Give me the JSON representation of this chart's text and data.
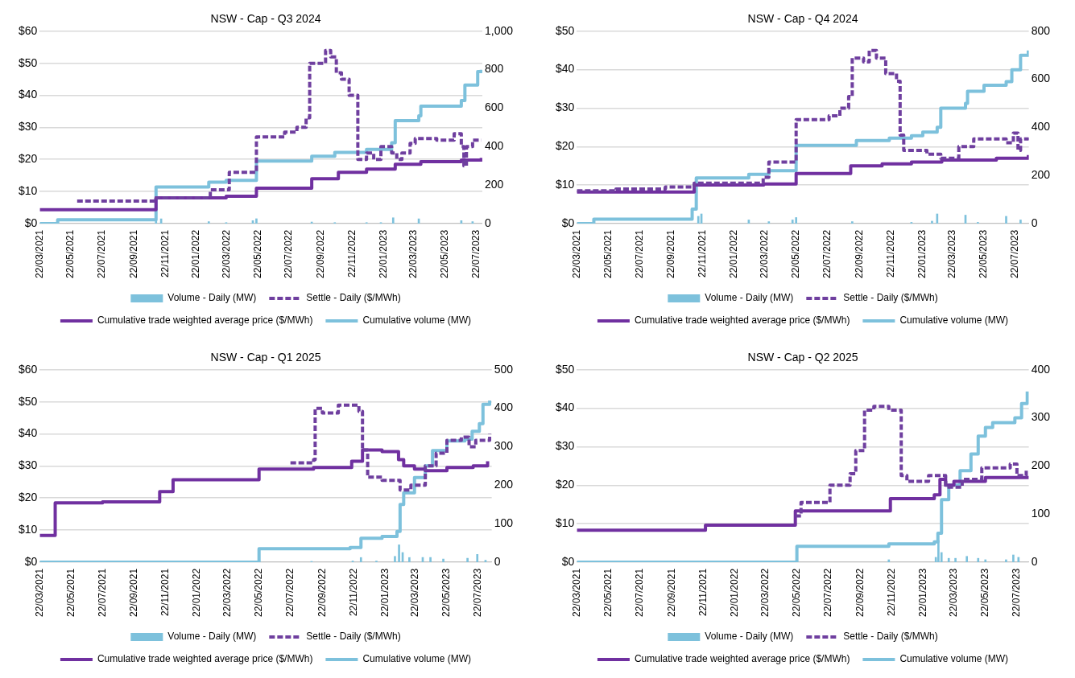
{
  "chart_data": [
    {
      "type": "step",
      "title": "NSW - Cap - Q3 2024",
      "legend": "bottom",
      "grid": "y",
      "marker": "none",
      "xlim": [
        "2021-03-22",
        "2023-08-03"
      ],
      "xticks": [
        {
          "value": "2021-03-22",
          "label": "22/03/2021"
        },
        {
          "value": "2021-05-22",
          "label": "22/05/2021"
        },
        {
          "value": "2021-07-22",
          "label": "22/07/2021"
        },
        {
          "value": "2021-09-22",
          "label": "22/09/2021"
        },
        {
          "value": "2021-11-22",
          "label": "22/11/2021"
        },
        {
          "value": "2022-01-22",
          "label": "22/01/2022"
        },
        {
          "value": "2022-03-22",
          "label": "22/03/2022"
        },
        {
          "value": "2022-05-22",
          "label": "22/05/2022"
        },
        {
          "value": "2022-07-22",
          "label": "22/07/2022"
        },
        {
          "value": "2022-09-22",
          "label": "22/09/2022"
        },
        {
          "value": "2022-11-22",
          "label": "22/11/2022"
        },
        {
          "value": "2023-01-22",
          "label": "22/01/2023"
        },
        {
          "value": "2023-03-22",
          "label": "22/03/2023"
        },
        {
          "value": "2023-05-22",
          "label": "22/05/2023"
        },
        {
          "value": "2023-07-22",
          "label": "22/07/2023"
        }
      ],
      "ylim": [
        0,
        60
      ],
      "yticks": [
        {
          "value": 0,
          "label": "$0"
        },
        {
          "value": 10,
          "label": "$10"
        },
        {
          "value": 20,
          "label": "$20"
        },
        {
          "value": 30,
          "label": "$30"
        },
        {
          "value": 40,
          "label": "$40"
        },
        {
          "value": 50,
          "label": "$50"
        },
        {
          "value": 60,
          "label": "$60"
        }
      ],
      "y2lim": [
        0,
        1000
      ],
      "y2ticks": [
        0,
        200,
        400,
        600,
        800,
        {
          "value": 1000,
          "label": "1,000"
        }
      ],
      "series": [
        {
          "name": "Volume - Daily (MW)",
          "type": "bar",
          "axis": "y2",
          "color": "#7dc1dc",
          "x": [
            "2021-11-04",
            "2021-11-14",
            "2022-02-15",
            "2022-03-21",
            "2022-05-12",
            "2022-05-19",
            "2022-09-04",
            "2022-10-19",
            "2022-12-20",
            "2023-01-17",
            "2023-02-10",
            "2023-04-01",
            "2023-06-23",
            "2023-07-15"
          ],
          "values": [
            20,
            25,
            10,
            5,
            15,
            25,
            8,
            5,
            5,
            5,
            30,
            25,
            15,
            10
          ]
        },
        {
          "name": "Settle - Daily ($/MWh)",
          "line_style": "dashed",
          "color": "#6f3f9f",
          "x": [
            "2021-06-03",
            "2021-11-04",
            "2022-02-18",
            "2022-03-27",
            "2022-05-19",
            "2022-07-13",
            "2022-08-06",
            "2022-08-24",
            "2022-08-31",
            "2022-10-01",
            "2022-10-11",
            "2022-10-22",
            "2022-11-01",
            "2022-11-16",
            "2022-12-03",
            "2022-12-20",
            "2023-01-03",
            "2023-01-17",
            "2023-02-07",
            "2023-02-17",
            "2023-02-27",
            "2023-03-15",
            "2023-03-25",
            "2023-05-06",
            "2023-06-09",
            "2023-06-23",
            "2023-06-28",
            "2023-07-03",
            "2023-07-15",
            "2023-08-01"
          ],
          "values": [
            7,
            8,
            10.5,
            16,
            27,
            28.5,
            30,
            33,
            50,
            54,
            52,
            47,
            45,
            40,
            20,
            22,
            20,
            24,
            22,
            20,
            22,
            25,
            26.5,
            26,
            28,
            24,
            18,
            24,
            26,
            26
          ]
        },
        {
          "name": "Cumulative trade weighted average price ($/MWh)",
          "color": "#7030a0",
          "x": [
            "2021-03-22",
            "2021-11-04",
            "2022-03-21",
            "2022-05-19",
            "2022-09-04",
            "2022-10-26",
            "2022-12-20",
            "2023-02-14",
            "2023-04-05",
            "2023-06-23",
            "2023-08-01"
          ],
          "values": [
            4.3,
            8,
            8.5,
            11,
            14,
            16,
            17,
            18.5,
            19.3,
            19.8,
            20.5
          ]
        },
        {
          "name": "Cumulative volume (MW)",
          "axis": "y2",
          "color": "#7dc1dc",
          "x": [
            "2021-03-22",
            "2021-04-26",
            "2021-11-04",
            "2022-02-15",
            "2022-03-21",
            "2022-05-19",
            "2022-09-04",
            "2022-10-19",
            "2022-12-20",
            "2023-02-07",
            "2023-02-14",
            "2023-04-01",
            "2023-04-05",
            "2023-06-23",
            "2023-06-30",
            "2023-07-25",
            "2023-08-01"
          ],
          "values": [
            0,
            20,
            190,
            215,
            225,
            325,
            350,
            370,
            385,
            420,
            535,
            560,
            610,
            640,
            720,
            790,
            800
          ]
        }
      ]
    },
    {
      "type": "step",
      "title": "NSW - Cap - Q4 2024",
      "legend": "bottom",
      "grid": "y",
      "marker": "none",
      "xlim": [
        "2021-03-22",
        "2023-08-17"
      ],
      "xticks": [
        {
          "value": "2021-03-22",
          "label": "22/03/2021"
        },
        {
          "value": "2021-05-22",
          "label": "22/05/2021"
        },
        {
          "value": "2021-07-22",
          "label": "22/07/2021"
        },
        {
          "value": "2021-09-22",
          "label": "22/09/2021"
        },
        {
          "value": "2021-11-22",
          "label": "22/11/2021"
        },
        {
          "value": "2022-01-22",
          "label": "22/01/2022"
        },
        {
          "value": "2022-03-22",
          "label": "22/03/2022"
        },
        {
          "value": "2022-05-22",
          "label": "22/05/2022"
        },
        {
          "value": "2022-07-22",
          "label": "22/07/2022"
        },
        {
          "value": "2022-09-22",
          "label": "22/09/2022"
        },
        {
          "value": "2022-11-22",
          "label": "22/11/2022"
        },
        {
          "value": "2023-01-22",
          "label": "22/01/2023"
        },
        {
          "value": "2023-03-22",
          "label": "22/03/2023"
        },
        {
          "value": "2023-05-22",
          "label": "22/05/2023"
        },
        {
          "value": "2023-07-22",
          "label": "22/07/2023"
        }
      ],
      "ylim": [
        0,
        50
      ],
      "yticks": [
        {
          "value": 0,
          "label": "$0"
        },
        {
          "value": 10,
          "label": "$10"
        },
        {
          "value": 20,
          "label": "$20"
        },
        {
          "value": 30,
          "label": "$30"
        },
        {
          "value": 40,
          "label": "$40"
        },
        {
          "value": 50,
          "label": "$50"
        }
      ],
      "y2lim": [
        0,
        800
      ],
      "y2ticks": [
        0,
        200,
        400,
        600,
        800
      ],
      "series": [
        {
          "name": "Volume - Daily (MW)",
          "type": "bar",
          "axis": "y2",
          "color": "#7dc1dc",
          "x": [
            "2021-11-13",
            "2021-11-19",
            "2022-02-19",
            "2022-03-30",
            "2022-05-15",
            "2022-05-22",
            "2022-09-08",
            "2023-01-01",
            "2023-02-10",
            "2023-02-20",
            "2023-04-16",
            "2023-05-10",
            "2023-07-04",
            "2023-08-01"
          ],
          "values": [
            30,
            40,
            15,
            8,
            15,
            25,
            8,
            5,
            10,
            40,
            35,
            5,
            30,
            15
          ]
        },
        {
          "name": "Settle - Daily ($/MWh)",
          "line_style": "dashed",
          "color": "#6f3f9f",
          "x": [
            "2021-03-22",
            "2021-06-06",
            "2021-09-10",
            "2021-11-05",
            "2022-03-19",
            "2022-03-30",
            "2022-05-22",
            "2022-07-25",
            "2022-08-15",
            "2022-09-01",
            "2022-09-08",
            "2022-09-30",
            "2022-10-11",
            "2022-10-25",
            "2022-11-12",
            "2022-12-03",
            "2022-12-10",
            "2022-12-17",
            "2023-01-31",
            "2023-02-27",
            "2023-04-03",
            "2023-05-02",
            "2023-07-04",
            "2023-07-18",
            "2023-07-27",
            "2023-08-01",
            "2023-08-16"
          ],
          "values": [
            8.5,
            9,
            9.5,
            10.5,
            12,
            16,
            27,
            28,
            30,
            33,
            43,
            42,
            45,
            43,
            39,
            37,
            23,
            19,
            18,
            17,
            20,
            22,
            21,
            23.5,
            19,
            22,
            21
          ]
        },
        {
          "name": "Cumulative trade weighted average price ($/MWh)",
          "color": "#7030a0",
          "x": [
            "2021-03-22",
            "2021-11-05",
            "2022-03-20",
            "2022-05-22",
            "2022-09-05",
            "2022-11-05",
            "2023-01-01",
            "2023-03-01",
            "2023-06-15",
            "2023-08-16"
          ],
          "values": [
            8.2,
            10,
            10.3,
            13,
            15,
            15.5,
            16,
            16.5,
            17,
            17.8
          ]
        },
        {
          "name": "Cumulative volume (MW)",
          "axis": "y2",
          "color": "#7dc1dc",
          "x": [
            "2021-03-22",
            "2021-04-24",
            "2021-11-01",
            "2021-11-09",
            "2022-02-19",
            "2022-03-30",
            "2022-05-22",
            "2022-09-16",
            "2022-11-19",
            "2023-01-01",
            "2023-01-23",
            "2023-02-20",
            "2023-02-27",
            "2023-04-16",
            "2023-04-20",
            "2023-05-22",
            "2023-07-04",
            "2023-07-15",
            "2023-08-01",
            "2023-08-16"
          ],
          "values": [
            0,
            18,
            60,
            190,
            205,
            220,
            325,
            345,
            355,
            365,
            380,
            400,
            480,
            500,
            550,
            575,
            590,
            640,
            700,
            720
          ]
        }
      ]
    },
    {
      "type": "step",
      "title": "NSW - Cap - Q1 2025",
      "legend": "bottom",
      "grid": "y",
      "marker": "none",
      "xlim": [
        "2021-03-22",
        "2023-08-17"
      ],
      "xticks": [
        {
          "value": "2021-03-22",
          "label": "22/03/2021"
        },
        {
          "value": "2021-05-22",
          "label": "22/05/2021"
        },
        {
          "value": "2021-07-22",
          "label": "22/07/2021"
        },
        {
          "value": "2021-09-22",
          "label": "22/09/2021"
        },
        {
          "value": "2021-11-22",
          "label": "22/11/2021"
        },
        {
          "value": "2022-01-22",
          "label": "22/01/2022"
        },
        {
          "value": "2022-03-22",
          "label": "22/03/2022"
        },
        {
          "value": "2022-05-22",
          "label": "22/05/2022"
        },
        {
          "value": "2022-07-22",
          "label": "22/07/2022"
        },
        {
          "value": "2022-09-22",
          "label": "22/09/2022"
        },
        {
          "value": "2022-11-22",
          "label": "22/11/2022"
        },
        {
          "value": "2023-01-22",
          "label": "22/01/2023"
        },
        {
          "value": "2023-03-22",
          "label": "22/03/2023"
        },
        {
          "value": "2023-05-22",
          "label": "22/05/2023"
        },
        {
          "value": "2023-07-22",
          "label": "22/07/2023"
        }
      ],
      "ylim": [
        0,
        60
      ],
      "yticks": [
        {
          "value": 0,
          "label": "$0"
        },
        {
          "value": 10,
          "label": "$10"
        },
        {
          "value": 20,
          "label": "$20"
        },
        {
          "value": 30,
          "label": "$30"
        },
        {
          "value": 40,
          "label": "$40"
        },
        {
          "value": 50,
          "label": "$50"
        },
        {
          "value": 60,
          "label": "$60"
        }
      ],
      "y2lim": [
        0,
        500
      ],
      "y2ticks": [
        0,
        100,
        200,
        300,
        400,
        500
      ],
      "series": [
        {
          "name": "Volume - Daily (MW)",
          "type": "bar",
          "axis": "y2",
          "color": "#7dc1dc",
          "x": [
            "2022-09-01",
            "2022-11-20",
            "2022-12-06",
            "2023-01-05",
            "2023-02-10",
            "2023-02-18",
            "2023-02-25",
            "2023-03-10",
            "2023-04-05",
            "2023-04-20",
            "2023-05-15",
            "2023-07-01",
            "2023-07-20",
            "2023-08-05"
          ],
          "values": [
            2,
            3,
            12,
            3,
            15,
            45,
            25,
            12,
            12,
            12,
            8,
            10,
            20,
            5
          ]
        },
        {
          "name": "Settle - Daily ($/MWh)",
          "line_style": "dashed",
          "color": "#6f3f9f",
          "x": [
            "2022-07-22",
            "2022-09-05",
            "2022-09-08",
            "2022-09-22",
            "2022-10-23",
            "2022-12-02",
            "2022-12-09",
            "2022-12-19",
            "2023-01-16",
            "2023-02-20",
            "2023-03-13",
            "2023-04-10",
            "2023-05-01",
            "2023-05-22",
            "2023-06-19",
            "2023-07-04",
            "2023-07-17",
            "2023-08-13"
          ],
          "values": [
            31,
            32,
            48,
            46.5,
            49,
            47,
            35,
            26.5,
            25.5,
            22.5,
            24,
            30,
            34,
            38,
            39,
            36,
            38,
            40
          ]
        },
        {
          "name": "Cumulative trade weighted average price ($/MWh)",
          "color": "#7030a0",
          "x": [
            "2021-03-22",
            "2021-04-21",
            "2021-07-22",
            "2021-11-10",
            "2021-12-06",
            "2022-05-22",
            "2022-09-05",
            "2022-11-18",
            "2022-12-09",
            "2023-01-16",
            "2023-02-17",
            "2023-02-27",
            "2023-03-20",
            "2023-04-10",
            "2023-05-22",
            "2023-07-12",
            "2023-08-09"
          ],
          "values": [
            8.3,
            18.5,
            18.8,
            22,
            25.7,
            29,
            29.5,
            31.5,
            35,
            34.5,
            32,
            30,
            29,
            28.5,
            29.5,
            30,
            31.5
          ]
        },
        {
          "name": "Cumulative volume (MW)",
          "axis": "y2",
          "color": "#7dc1dc",
          "x": [
            "2021-03-22",
            "2022-05-22",
            "2022-11-15",
            "2022-12-06",
            "2023-01-16",
            "2023-02-14",
            "2023-02-20",
            "2023-02-27",
            "2023-03-20",
            "2023-04-10",
            "2023-04-24",
            "2023-05-22",
            "2023-06-26",
            "2023-07-10",
            "2023-07-24",
            "2023-07-31",
            "2023-08-13"
          ],
          "values": [
            0,
            35,
            38,
            62,
            67,
            80,
            150,
            180,
            220,
            250,
            290,
            315,
            320,
            340,
            360,
            410,
            420
          ]
        }
      ]
    },
    {
      "type": "step",
      "title": "NSW - Cap - Q2 2025",
      "legend": "bottom",
      "grid": "y",
      "marker": "none",
      "xlim": [
        "2021-03-22",
        "2023-08-14"
      ],
      "xticks": [
        {
          "value": "2021-03-22",
          "label": "22/03/2021"
        },
        {
          "value": "2021-05-22",
          "label": "22/05/2021"
        },
        {
          "value": "2021-07-22",
          "label": "22/07/2021"
        },
        {
          "value": "2021-09-22",
          "label": "22/09/2021"
        },
        {
          "value": "2021-11-22",
          "label": "22/11/2021"
        },
        {
          "value": "2022-01-22",
          "label": "22/01/2022"
        },
        {
          "value": "2022-03-22",
          "label": "22/03/2022"
        },
        {
          "value": "2022-05-22",
          "label": "22/05/2022"
        },
        {
          "value": "2022-07-22",
          "label": "22/07/2022"
        },
        {
          "value": "2022-09-22",
          "label": "22/09/2022"
        },
        {
          "value": "2022-11-22",
          "label": "22/11/2022"
        },
        {
          "value": "2023-01-22",
          "label": "22/01/2023"
        },
        {
          "value": "2023-03-22",
          "label": "22/03/2023"
        },
        {
          "value": "2023-05-22",
          "label": "22/05/2023"
        },
        {
          "value": "2023-07-22",
          "label": "22/07/2023"
        }
      ],
      "ylim": [
        0,
        50
      ],
      "yticks": [
        {
          "value": 0,
          "label": "$0"
        },
        {
          "value": 10,
          "label": "$10"
        },
        {
          "value": 20,
          "label": "$20"
        },
        {
          "value": 30,
          "label": "$30"
        },
        {
          "value": 40,
          "label": "$40"
        },
        {
          "value": 50,
          "label": "$50"
        }
      ],
      "y2lim": [
        0,
        400
      ],
      "y2ticks": [
        0,
        100,
        200,
        300,
        400
      ],
      "series": [
        {
          "name": "Volume - Daily (MW)",
          "type": "bar",
          "axis": "y2",
          "color": "#7dc1dc",
          "x": [
            "2022-11-16",
            "2023-02-15",
            "2023-02-20",
            "2023-02-26",
            "2023-03-12",
            "2023-03-25",
            "2023-04-16",
            "2023-05-08",
            "2023-05-22",
            "2023-07-01",
            "2023-07-15",
            "2023-07-25"
          ],
          "values": [
            5,
            10,
            45,
            20,
            8,
            8,
            12,
            8,
            5,
            5,
            15,
            10
          ]
        },
        {
          "name": "Settle - Daily ($/MWh)",
          "line_style": "dashed",
          "color": "#6f3f9f",
          "x": [
            "2022-05-19",
            "2022-05-30",
            "2022-07-25",
            "2022-09-02",
            "2022-09-13",
            "2022-09-30",
            "2022-10-18",
            "2022-11-16",
            "2022-12-10",
            "2022-12-21",
            "2023-02-01",
            "2023-03-06",
            "2023-04-07",
            "2023-05-15",
            "2023-07-09",
            "2023-07-22",
            "2023-08-09"
          ],
          "values": [
            12,
            15.5,
            20,
            23,
            29,
            39.5,
            40.5,
            39.5,
            22.5,
            21,
            22.5,
            19.5,
            21.5,
            24.5,
            25.5,
            22.5,
            24
          ]
        },
        {
          "name": "Cumulative trade weighted average price ($/MWh)",
          "color": "#7030a0",
          "x": [
            "2021-03-22",
            "2021-11-26",
            "2022-05-19",
            "2022-11-19",
            "2023-02-12",
            "2023-02-23",
            "2023-03-06",
            "2023-03-22",
            "2023-05-22",
            "2023-08-14"
          ],
          "values": [
            8.3,
            9.6,
            13.3,
            16.5,
            17.5,
            21.5,
            20,
            21,
            22,
            22
          ]
        },
        {
          "name": "Cumulative volume (MW)",
          "axis": "y2",
          "color": "#7dc1dc",
          "x": [
            "2021-03-22",
            "2022-05-22",
            "2022-11-16",
            "2023-02-12",
            "2023-02-19",
            "2023-02-26",
            "2023-03-12",
            "2023-04-03",
            "2023-04-24",
            "2023-05-08",
            "2023-05-22",
            "2023-06-05",
            "2023-07-18",
            "2023-07-31",
            "2023-08-11"
          ],
          "values": [
            0,
            33,
            38,
            42,
            60,
            130,
            160,
            190,
            225,
            262,
            280,
            290,
            300,
            330,
            355
          ]
        }
      ]
    }
  ]
}
